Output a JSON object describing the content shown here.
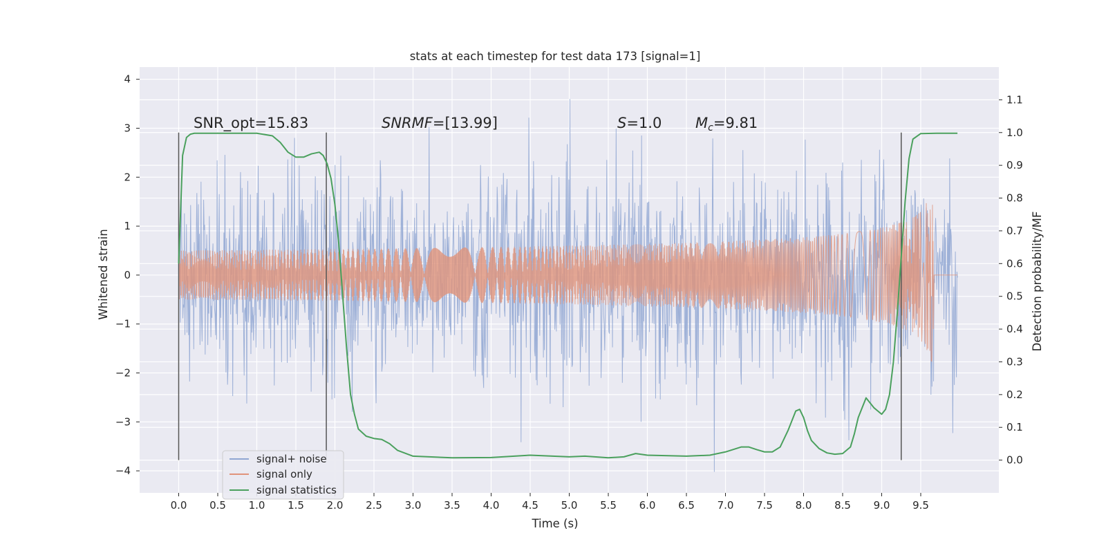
{
  "chart_data": {
    "type": "line",
    "title": "stats at each timestep for test data 173 [signal=1]",
    "xlabel": "Time (s)",
    "ylabel": "Whitened strain",
    "y2label": "Detection probability/MF",
    "xlim": [
      -0.5,
      10.5
    ],
    "ylim": [
      -4.45,
      4.25
    ],
    "y2lim": [
      -0.1,
      1.2
    ],
    "x_ticks": [
      "0.0",
      "0.5",
      "1.0",
      "1.5",
      "2.0",
      "2.5",
      "3.0",
      "3.5",
      "4.0",
      "4.5",
      "5.0",
      "5.5",
      "6.0",
      "6.5",
      "7.0",
      "7.5",
      "8.0",
      "8.5",
      "9.0",
      "9.5"
    ],
    "y_ticks": [
      "4",
      "3",
      "2",
      "1",
      "0",
      "−1",
      "−2",
      "−3",
      "−4"
    ],
    "y2_ticks": [
      "1.1",
      "1.0",
      "0.9",
      "0.8",
      "0.7",
      "0.6",
      "0.5",
      "0.4",
      "0.3",
      "0.2",
      "0.1",
      "0.0"
    ],
    "grid": true,
    "legend_position": "lower-left",
    "annotations": {
      "snr_opt": "SNR_opt=15.83",
      "snr_mf_main": "SNR",
      "snr_mf_sub": "MF",
      "snr_mf_rest": "=[13.99]",
      "s_main": "S",
      "s_rest": "=1.0",
      "mc_main": "M",
      "mc_sub": "c",
      "mc_rest": "=9.81"
    },
    "vertical_markers_x": [
      0.0,
      1.89,
      9.25
    ],
    "series": [
      {
        "name": "signal+ noise",
        "color": "#8fa6d2",
        "x_range": [
          0.0,
          9.97
        ],
        "envelope_min": -4.05,
        "envelope_max": 3.88
      },
      {
        "name": "signal only",
        "color": "#e0937a",
        "x_range": [
          0.0,
          9.97
        ],
        "peak_x": 9.67,
        "peak_amplitude": 2.35
      },
      {
        "name": "signal statistics",
        "color": "#4aa05d",
        "axis": "right",
        "x": [
          0.0,
          0.05,
          0.1,
          0.15,
          0.2,
          0.3,
          0.5,
          0.8,
          1.0,
          1.2,
          1.3,
          1.4,
          1.5,
          1.6,
          1.7,
          1.8,
          1.85,
          1.9,
          1.95,
          2.0,
          2.05,
          2.1,
          2.15,
          2.2,
          2.25,
          2.3,
          2.4,
          2.5,
          2.6,
          2.7,
          2.8,
          3.0,
          3.5,
          4.0,
          4.5,
          5.0,
          5.2,
          5.5,
          5.7,
          5.85,
          6.0,
          6.5,
          6.8,
          7.0,
          7.2,
          7.3,
          7.4,
          7.5,
          7.6,
          7.7,
          7.8,
          7.9,
          7.95,
          8.0,
          8.05,
          8.1,
          8.2,
          8.3,
          8.4,
          8.5,
          8.6,
          8.65,
          8.7,
          8.8,
          8.9,
          9.0,
          9.05,
          9.1,
          9.15,
          9.2,
          9.25,
          9.3,
          9.35,
          9.4,
          9.5,
          9.7,
          9.97
        ],
        "y": [
          0.6,
          0.93,
          0.985,
          0.995,
          0.998,
          0.998,
          0.998,
          0.998,
          0.998,
          0.99,
          0.97,
          0.94,
          0.925,
          0.925,
          0.935,
          0.94,
          0.93,
          0.905,
          0.86,
          0.78,
          0.66,
          0.5,
          0.34,
          0.2,
          0.14,
          0.095,
          0.073,
          0.066,
          0.063,
          0.05,
          0.03,
          0.012,
          0.007,
          0.008,
          0.015,
          0.01,
          0.012,
          0.007,
          0.01,
          0.02,
          0.015,
          0.012,
          0.015,
          0.025,
          0.04,
          0.04,
          0.032,
          0.025,
          0.025,
          0.04,
          0.09,
          0.15,
          0.155,
          0.13,
          0.09,
          0.06,
          0.035,
          0.022,
          0.018,
          0.02,
          0.04,
          0.08,
          0.13,
          0.19,
          0.16,
          0.14,
          0.155,
          0.2,
          0.3,
          0.45,
          0.62,
          0.79,
          0.92,
          0.98,
          0.997,
          0.998,
          0.998
        ]
      }
    ]
  }
}
